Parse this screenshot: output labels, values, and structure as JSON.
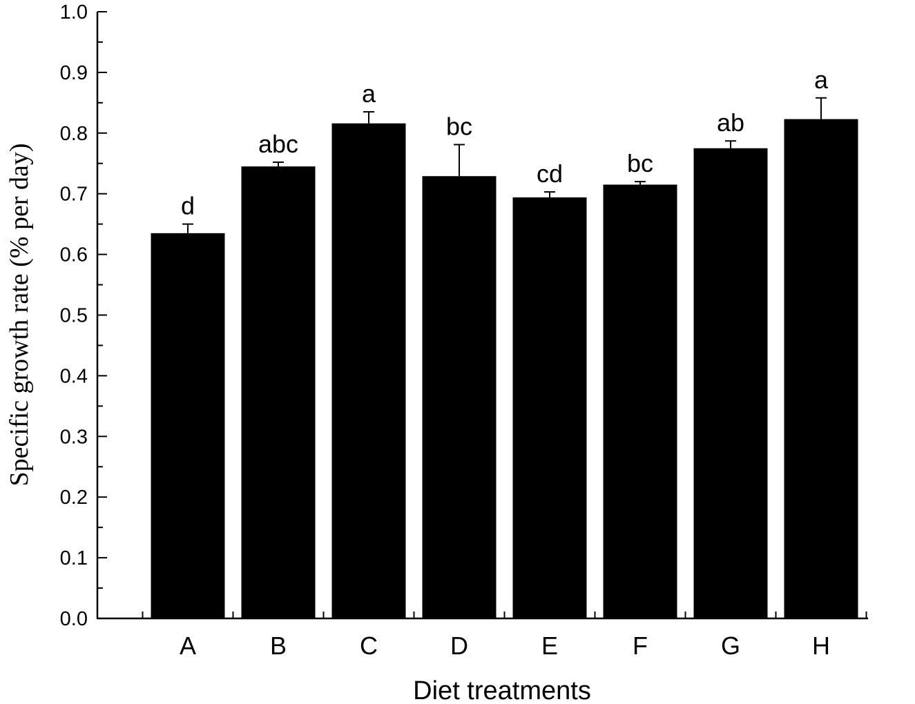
{
  "chart_data": {
    "type": "bar",
    "title": "",
    "xlabel": "Diet treatments",
    "ylabel": "Specific growth rate (% per day)",
    "ylim": [
      0.0,
      1.0
    ],
    "yticks": [
      "0.0",
      "0.1",
      "0.2",
      "0.3",
      "0.4",
      "0.5",
      "0.6",
      "0.7",
      "0.8",
      "0.9",
      "1.0"
    ],
    "categories": [
      "A",
      "B",
      "C",
      "D",
      "E",
      "F",
      "G",
      "H"
    ],
    "values": [
      0.635,
      0.745,
      0.816,
      0.729,
      0.694,
      0.715,
      0.775,
      0.823
    ],
    "errors": [
      0.015,
      0.007,
      0.019,
      0.052,
      0.009,
      0.005,
      0.012,
      0.035
    ],
    "significance": [
      "d",
      "abc",
      "a",
      "bc",
      "cd",
      "bc",
      "ab",
      "a"
    ],
    "bar_color": "#000000",
    "grid": false,
    "legend": "none"
  }
}
